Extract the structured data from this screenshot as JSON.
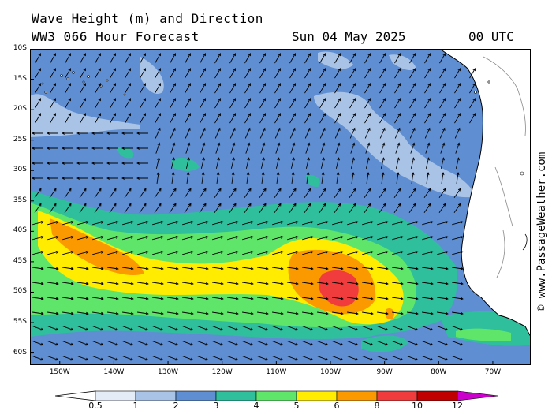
{
  "header": {
    "title": "Wave Height (m) and Direction",
    "model": "WW3 066 Hour Forecast",
    "date": "Sun 04 May 2025",
    "time": "00 UTC"
  },
  "credit": "© www.PassageWeather.com",
  "map": {
    "lat_labels": [
      "10S",
      "15S",
      "20S",
      "25S",
      "30S",
      "35S",
      "40S",
      "45S",
      "50S",
      "55S",
      "60S"
    ],
    "lon_labels": [
      "150W",
      "140W",
      "130W",
      "120W",
      "110W",
      "100W",
      "90W",
      "80W",
      "70W"
    ],
    "lon_range": [
      -155.5,
      -63
    ],
    "lat_range": [
      -62,
      -10
    ]
  },
  "legend": {
    "labels": [
      "0.5",
      "1",
      "2",
      "3",
      "4",
      "5",
      "6",
      "8",
      "10",
      "12"
    ],
    "colors": [
      "#e4ecf8",
      "#a9c3e6",
      "#5f8fd2",
      "#2fbf9c",
      "#5fe66a",
      "#ffec00",
      "#fb9a00",
      "#f03c3c",
      "#c00000",
      "#cc00cc"
    ]
  },
  "colors": {
    "land": "#ffffff",
    "coast": "#000000",
    "border": "#888888"
  }
}
